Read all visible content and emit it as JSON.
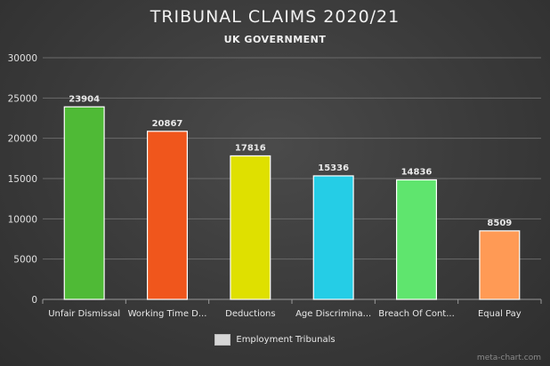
{
  "chart_data": {
    "type": "bar",
    "title": "TRIBUNAL CLAIMS 2020/21",
    "subtitle": "UK GOVERNMENT",
    "xlabel": "",
    "ylabel": "",
    "ylim": [
      0,
      30000
    ],
    "yticks": [
      0,
      5000,
      10000,
      15000,
      20000,
      25000,
      30000
    ],
    "categories": [
      "Unfair Dismissal",
      "Working Time D...",
      "Deductions",
      "Age Discrimina...",
      "Breach Of Cont...",
      "Equal Pay"
    ],
    "values": [
      23904,
      20867,
      17816,
      15336,
      14836,
      8509
    ],
    "bar_colors": [
      "#4fba36",
      "#f0561c",
      "#dfe000",
      "#25cde6",
      "#5fe56e",
      "#ff9a55"
    ],
    "legend": {
      "label": "Employment Tribunals",
      "position": "bottom",
      "color": "#d6d6d6"
    },
    "grid": true
  },
  "watermark": "meta-chart.com"
}
